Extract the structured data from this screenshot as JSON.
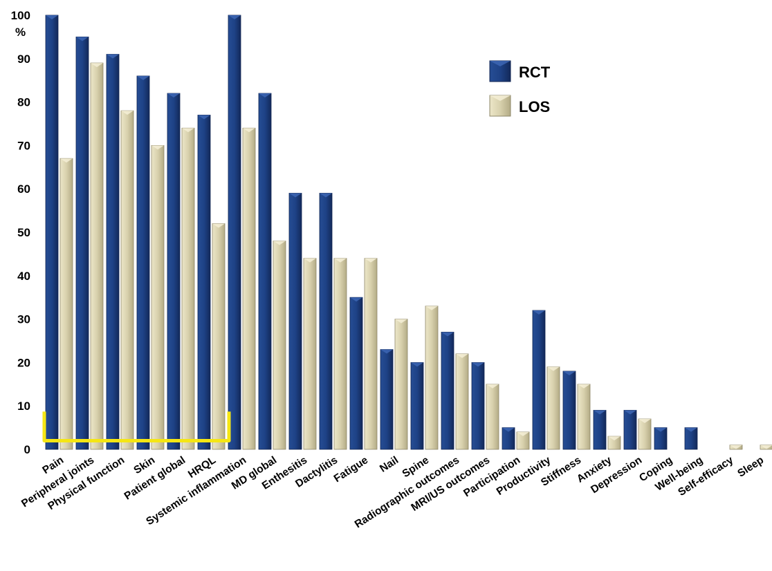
{
  "chart_data": {
    "type": "bar",
    "title": "",
    "xlabel": "",
    "ylabel": "%",
    "ylim": [
      0,
      100
    ],
    "yticks": [
      0,
      10,
      20,
      30,
      40,
      50,
      60,
      70,
      80,
      90,
      100
    ],
    "grid": false,
    "legend_position": "top-right",
    "categories": [
      "Pain",
      "Peripheral joints",
      "Physical function",
      "Skin",
      "Patient global",
      "HRQL",
      "Systemic inflammation",
      "MD global",
      "Enthesitis",
      "Dactylitis",
      "Fatigue",
      "Nail",
      "Spine",
      "Radiographic outcomes",
      "MRI/US outcomes",
      "Participation",
      "Productivity",
      "Stiffness",
      "Anxiety",
      "Depression",
      "Coping",
      "Well-being",
      "Self-efficacy",
      "Sleep"
    ],
    "series": [
      {
        "name": "RCT",
        "color": "#1f3f80",
        "values": [
          100,
          95,
          91,
          86,
          82,
          77,
          100,
          82,
          59,
          59,
          35,
          23,
          20,
          27,
          20,
          5,
          32,
          18,
          9,
          9,
          5,
          5,
          0,
          0
        ]
      },
      {
        "name": "LOS",
        "color": "#d9d2b0",
        "values": [
          67,
          89,
          78,
          70,
          74,
          52,
          74,
          48,
          44,
          44,
          44,
          30,
          33,
          22,
          15,
          4,
          19,
          15,
          3,
          7,
          0,
          0,
          1,
          1
        ]
      }
    ],
    "annotations": [
      {
        "type": "bracket",
        "color": "#f5e614",
        "spans_categories": [
          "Pain",
          "HRQL"
        ]
      }
    ]
  }
}
